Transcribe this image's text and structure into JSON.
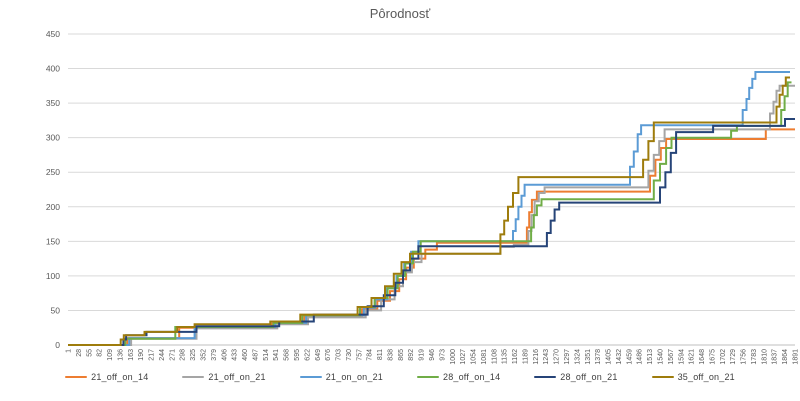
{
  "chart_data": {
    "type": "line",
    "line_style": "step",
    "title": "Pôrodnosť",
    "xlabel": "",
    "ylabel": "",
    "ylim": [
      0,
      450
    ],
    "grid": true,
    "legend_position": "bottom",
    "axis_color": "#595959",
    "gridline_color": "#d9d9d9",
    "baseline_color": "#bfbfbf",
    "y_ticks": [
      0,
      50,
      100,
      150,
      200,
      250,
      300,
      350,
      400,
      450
    ],
    "x_range": [
      1,
      1891
    ],
    "x_tick_labels": [
      "1",
      "28",
      "55",
      "82",
      "109",
      "136",
      "163",
      "190",
      "217",
      "244",
      "271",
      "298",
      "325",
      "352",
      "379",
      "406",
      "433",
      "460",
      "487",
      "514",
      "541",
      "568",
      "595",
      "622",
      "649",
      "676",
      "703",
      "730",
      "757",
      "784",
      "811",
      "838",
      "865",
      "892",
      "919",
      "946",
      "973",
      "1000",
      "1027",
      "1054",
      "1081",
      "1108",
      "1135",
      "1162",
      "1189",
      "1216",
      "1243",
      "1270",
      "1297",
      "1324",
      "1351",
      "1378",
      "1405",
      "1432",
      "1459",
      "1486",
      "1513",
      "1540",
      "1567",
      "1594",
      "1621",
      "1648",
      "1675",
      "1702",
      "1729",
      "1756",
      "1783",
      "1810",
      "1837",
      "1864",
      "1891"
    ],
    "series": [
      {
        "name": "21_off_on_14",
        "color": "#ED7D31",
        "steps": [
          [
            1,
            0
          ],
          [
            155,
            0
          ],
          [
            155,
            10
          ],
          [
            290,
            10
          ],
          [
            290,
            25
          ],
          [
            530,
            25
          ],
          [
            530,
            31
          ],
          [
            615,
            31
          ],
          [
            615,
            41
          ],
          [
            765,
            41
          ],
          [
            765,
            52
          ],
          [
            805,
            52
          ],
          [
            805,
            64
          ],
          [
            838,
            64
          ],
          [
            838,
            78
          ],
          [
            862,
            78
          ],
          [
            862,
            95
          ],
          [
            880,
            95
          ],
          [
            880,
            112
          ],
          [
            900,
            112
          ],
          [
            900,
            125
          ],
          [
            930,
            125
          ],
          [
            930,
            138
          ],
          [
            960,
            138
          ],
          [
            960,
            148
          ],
          [
            1194,
            148
          ],
          [
            1194,
            170
          ],
          [
            1200,
            170
          ],
          [
            1200,
            192
          ],
          [
            1207,
            192
          ],
          [
            1207,
            210
          ],
          [
            1220,
            210
          ],
          [
            1220,
            222
          ],
          [
            1514,
            222
          ],
          [
            1514,
            245
          ],
          [
            1528,
            245
          ],
          [
            1528,
            268
          ],
          [
            1542,
            268
          ],
          [
            1542,
            285
          ],
          [
            1556,
            285
          ],
          [
            1556,
            298
          ],
          [
            1815,
            298
          ],
          [
            1815,
            312
          ],
          [
            1891,
            312
          ]
        ]
      },
      {
        "name": "21_off_on_21",
        "color": "#A5A5A5",
        "steps": [
          [
            1,
            0
          ],
          [
            165,
            0
          ],
          [
            165,
            9
          ],
          [
            335,
            9
          ],
          [
            335,
            24
          ],
          [
            545,
            24
          ],
          [
            545,
            30
          ],
          [
            625,
            30
          ],
          [
            625,
            40
          ],
          [
            775,
            40
          ],
          [
            775,
            50
          ],
          [
            815,
            50
          ],
          [
            815,
            66
          ],
          [
            850,
            66
          ],
          [
            850,
            85
          ],
          [
            872,
            85
          ],
          [
            872,
            105
          ],
          [
            895,
            105
          ],
          [
            895,
            120
          ],
          [
            920,
            120
          ],
          [
            920,
            132
          ],
          [
            1125,
            132
          ],
          [
            1125,
            142
          ],
          [
            1160,
            142
          ],
          [
            1160,
            145
          ],
          [
            1198,
            145
          ],
          [
            1198,
            165
          ],
          [
            1206,
            165
          ],
          [
            1206,
            188
          ],
          [
            1214,
            188
          ],
          [
            1214,
            208
          ],
          [
            1225,
            208
          ],
          [
            1225,
            220
          ],
          [
            1240,
            220
          ],
          [
            1240,
            228
          ],
          [
            1510,
            228
          ],
          [
            1510,
            252
          ],
          [
            1524,
            252
          ],
          [
            1524,
            275
          ],
          [
            1538,
            275
          ],
          [
            1538,
            295
          ],
          [
            1552,
            295
          ],
          [
            1552,
            312
          ],
          [
            1826,
            312
          ],
          [
            1826,
            335
          ],
          [
            1835,
            335
          ],
          [
            1835,
            352
          ],
          [
            1843,
            352
          ],
          [
            1843,
            368
          ],
          [
            1851,
            368
          ],
          [
            1851,
            375
          ],
          [
            1891,
            375
          ]
        ]
      },
      {
        "name": "21_on_on_21",
        "color": "#5B9BD5",
        "steps": [
          [
            1,
            0
          ],
          [
            160,
            0
          ],
          [
            160,
            10
          ],
          [
            330,
            10
          ],
          [
            330,
            26
          ],
          [
            540,
            26
          ],
          [
            540,
            32
          ],
          [
            620,
            32
          ],
          [
            620,
            43
          ],
          [
            770,
            43
          ],
          [
            770,
            54
          ],
          [
            800,
            54
          ],
          [
            800,
            66
          ],
          [
            830,
            66
          ],
          [
            830,
            82
          ],
          [
            855,
            82
          ],
          [
            855,
            100
          ],
          [
            875,
            100
          ],
          [
            875,
            118
          ],
          [
            893,
            118
          ],
          [
            893,
            135
          ],
          [
            912,
            135
          ],
          [
            912,
            150
          ],
          [
            1158,
            150
          ],
          [
            1158,
            165
          ],
          [
            1165,
            165
          ],
          [
            1165,
            182
          ],
          [
            1172,
            182
          ],
          [
            1172,
            200
          ],
          [
            1180,
            200
          ],
          [
            1180,
            216
          ],
          [
            1188,
            216
          ],
          [
            1188,
            232
          ],
          [
            1462,
            232
          ],
          [
            1462,
            258
          ],
          [
            1472,
            258
          ],
          [
            1472,
            280
          ],
          [
            1482,
            280
          ],
          [
            1482,
            305
          ],
          [
            1491,
            305
          ],
          [
            1491,
            318
          ],
          [
            1755,
            318
          ],
          [
            1755,
            340
          ],
          [
            1765,
            340
          ],
          [
            1765,
            356
          ],
          [
            1772,
            356
          ],
          [
            1772,
            372
          ],
          [
            1780,
            372
          ],
          [
            1780,
            385
          ],
          [
            1788,
            385
          ],
          [
            1788,
            395
          ],
          [
            1878,
            395
          ]
        ]
      },
      {
        "name": "28_off_on_14",
        "color": "#70AD47",
        "steps": [
          [
            1,
            0
          ],
          [
            150,
            0
          ],
          [
            150,
            9
          ],
          [
            280,
            9
          ],
          [
            280,
            26
          ],
          [
            535,
            26
          ],
          [
            535,
            32
          ],
          [
            610,
            32
          ],
          [
            610,
            43
          ],
          [
            760,
            43
          ],
          [
            760,
            55
          ],
          [
            798,
            55
          ],
          [
            798,
            68
          ],
          [
            832,
            68
          ],
          [
            832,
            82
          ],
          [
            858,
            82
          ],
          [
            858,
            100
          ],
          [
            878,
            100
          ],
          [
            878,
            118
          ],
          [
            898,
            118
          ],
          [
            898,
            135
          ],
          [
            918,
            135
          ],
          [
            918,
            150
          ],
          [
            1205,
            150
          ],
          [
            1205,
            170
          ],
          [
            1212,
            170
          ],
          [
            1212,
            188
          ],
          [
            1220,
            188
          ],
          [
            1220,
            202
          ],
          [
            1232,
            202
          ],
          [
            1232,
            211
          ],
          [
            1524,
            211
          ],
          [
            1524,
            238
          ],
          [
            1540,
            238
          ],
          [
            1540,
            262
          ],
          [
            1556,
            262
          ],
          [
            1556,
            285
          ],
          [
            1570,
            285
          ],
          [
            1570,
            300
          ],
          [
            1725,
            300
          ],
          [
            1725,
            310
          ],
          [
            1740,
            310
          ],
          [
            1740,
            317
          ],
          [
            1855,
            317
          ],
          [
            1855,
            340
          ],
          [
            1864,
            340
          ],
          [
            1864,
            360
          ],
          [
            1872,
            360
          ],
          [
            1872,
            380
          ],
          [
            1882,
            380
          ]
        ]
      },
      {
        "name": "28_off_on_21",
        "color": "#264478",
        "steps": [
          [
            1,
            0
          ],
          [
            145,
            0
          ],
          [
            145,
            8
          ],
          [
            152,
            8
          ],
          [
            152,
            14
          ],
          [
            205,
            14
          ],
          [
            205,
            19
          ],
          [
            335,
            19
          ],
          [
            335,
            27
          ],
          [
            550,
            27
          ],
          [
            550,
            34
          ],
          [
            640,
            34
          ],
          [
            640,
            44
          ],
          [
            780,
            44
          ],
          [
            780,
            56
          ],
          [
            822,
            56
          ],
          [
            822,
            72
          ],
          [
            852,
            72
          ],
          [
            852,
            90
          ],
          [
            872,
            90
          ],
          [
            872,
            108
          ],
          [
            890,
            108
          ],
          [
            890,
            125
          ],
          [
            912,
            125
          ],
          [
            912,
            143
          ],
          [
            1246,
            143
          ],
          [
            1246,
            162
          ],
          [
            1256,
            162
          ],
          [
            1256,
            180
          ],
          [
            1266,
            180
          ],
          [
            1266,
            196
          ],
          [
            1278,
            196
          ],
          [
            1278,
            206
          ],
          [
            1540,
            206
          ],
          [
            1540,
            228
          ],
          [
            1554,
            228
          ],
          [
            1554,
            250
          ],
          [
            1568,
            250
          ],
          [
            1568,
            278
          ],
          [
            1582,
            278
          ],
          [
            1582,
            308
          ],
          [
            1678,
            308
          ],
          [
            1678,
            317
          ],
          [
            1865,
            317
          ],
          [
            1865,
            327
          ],
          [
            1891,
            327
          ]
        ]
      },
      {
        "name": "35_off_on_21",
        "color": "#9E7C0C",
        "steps": [
          [
            1,
            0
          ],
          [
            138,
            0
          ],
          [
            138,
            8
          ],
          [
            146,
            8
          ],
          [
            146,
            14
          ],
          [
            200,
            14
          ],
          [
            200,
            19
          ],
          [
            285,
            19
          ],
          [
            285,
            26
          ],
          [
            330,
            26
          ],
          [
            330,
            30
          ],
          [
            527,
            30
          ],
          [
            527,
            34
          ],
          [
            605,
            34
          ],
          [
            605,
            44
          ],
          [
            754,
            44
          ],
          [
            754,
            55
          ],
          [
            790,
            55
          ],
          [
            790,
            68
          ],
          [
            825,
            68
          ],
          [
            825,
            85
          ],
          [
            848,
            85
          ],
          [
            848,
            103
          ],
          [
            868,
            103
          ],
          [
            868,
            120
          ],
          [
            890,
            120
          ],
          [
            890,
            132
          ],
          [
            1125,
            132
          ],
          [
            1125,
            160
          ],
          [
            1135,
            160
          ],
          [
            1135,
            180
          ],
          [
            1145,
            180
          ],
          [
            1145,
            200
          ],
          [
            1158,
            200
          ],
          [
            1158,
            220
          ],
          [
            1172,
            220
          ],
          [
            1172,
            243
          ],
          [
            1496,
            243
          ],
          [
            1496,
            268
          ],
          [
            1510,
            268
          ],
          [
            1510,
            295
          ],
          [
            1524,
            295
          ],
          [
            1524,
            322
          ],
          [
            1843,
            322
          ],
          [
            1843,
            345
          ],
          [
            1851,
            345
          ],
          [
            1851,
            362
          ],
          [
            1859,
            362
          ],
          [
            1859,
            375
          ],
          [
            1867,
            375
          ],
          [
            1867,
            387
          ],
          [
            1878,
            387
          ]
        ]
      }
    ]
  }
}
